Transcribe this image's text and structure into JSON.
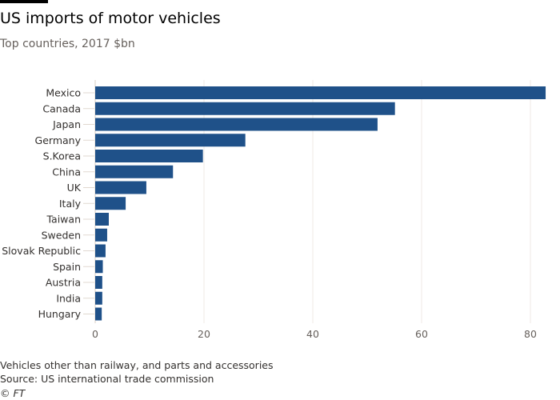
{
  "title": "US imports of motor vehicles",
  "subtitle": "Top countries, 2017 $bn",
  "footnote": "Vehicles other than railway, and parts and accessories",
  "source": "Source: US international trade commission",
  "credit": "© FT",
  "chart_data": {
    "type": "bar",
    "orientation": "horizontal",
    "categories": [
      "Mexico",
      "Canada",
      "Japan",
      "Germany",
      "S.Korea",
      "China",
      "UK",
      "Italy",
      "Taiwan",
      "Sweden",
      "Slovak Republic",
      "Spain",
      "Austria",
      "India",
      "Hungary"
    ],
    "values": [
      82.8,
      55.1,
      51.9,
      27.6,
      19.8,
      14.3,
      9.4,
      5.6,
      2.5,
      2.2,
      1.9,
      1.4,
      1.3,
      1.3,
      1.2
    ],
    "xlim": [
      0,
      83
    ],
    "xticks": [
      0,
      20,
      40,
      60,
      80
    ],
    "grid": true,
    "bar_color": "#1f5189"
  }
}
